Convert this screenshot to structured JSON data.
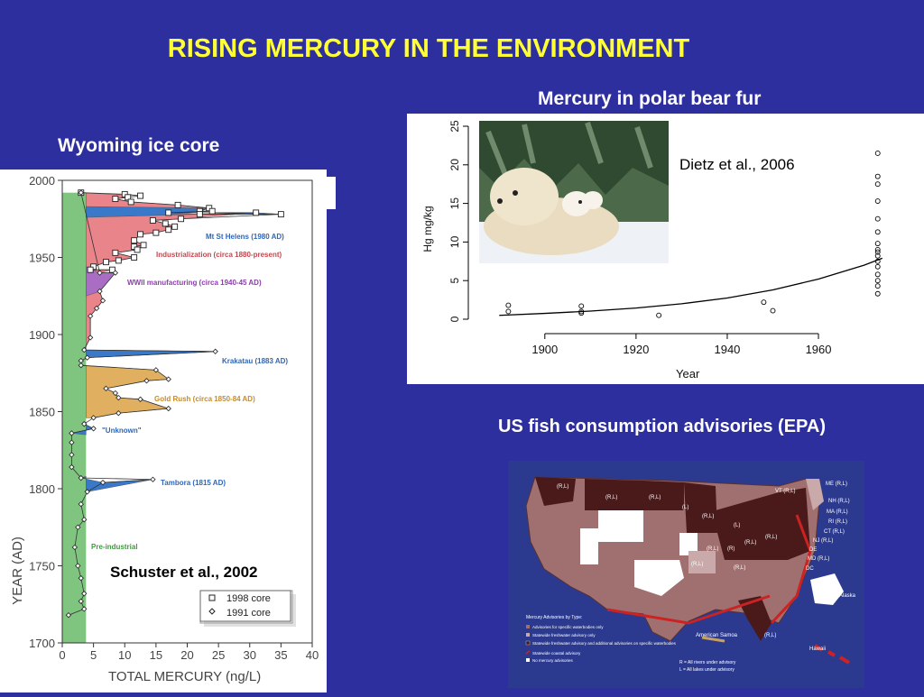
{
  "title": "RISING MERCURY IN THE ENVIRONMENT",
  "ice_core": {
    "heading": "Wyoming ice core",
    "citation": "Schuster et al., 2002",
    "legend": [
      "1998 core",
      "1991 core"
    ],
    "colors": {
      "preindustrial": "#7fc47f",
      "industrial": "#e8848a",
      "volcanic": "#3a79c9",
      "ww2": "#a96dc4",
      "goldrush": "#e0b060",
      "unknown": "#3a79c9"
    }
  },
  "polar_bear": {
    "heading": "Mercury in polar bear fur",
    "citation": "Dietz et al., 2006"
  },
  "fish": {
    "heading": "US fish consumption advisories (EPA)",
    "map_labels": {
      "rl_multi": [
        "(R,L)",
        "(R,L)",
        "(R,L)",
        "(R,L)",
        "(R,L)",
        "(R,L)",
        "(R,L)",
        "(R,L)",
        "(R,L)",
        "(R,L)"
      ],
      "l_only": [
        "(L)",
        "(L)"
      ],
      "r_only": "(R)",
      "ne_states": [
        "VT (R,L)",
        "ME (R,L)",
        "NH (R,L)",
        "MA (R,L)",
        "RI (R,L)",
        "CT (R,L)",
        "NJ (R,L)",
        "DE",
        "MD (R,L)",
        "DC"
      ],
      "alaska": "Alaska",
      "hawaii": "Hawaii",
      "samoa": "American Samoa"
    },
    "legend_title": "Mercury Advisories by Type:",
    "legend_items": [
      "Advisories for specific waterbodies only",
      "Statewide freshwater advisory only",
      "Statewide freshwater advisory and additional advisories on specific waterbodies",
      "Statewide coastal advisory",
      "No mercury advisories"
    ],
    "legend_colors": [
      "#a07070",
      "#c9a9a9",
      "#4a1a1a",
      "#cc2222",
      "#ffffff"
    ],
    "notes": [
      "R = All rivers under advisory",
      "L = All lakes under advisory"
    ]
  },
  "chart_data": [
    {
      "type": "area",
      "title": "",
      "xlabel": "TOTAL MERCURY (ng/L)",
      "ylabel": "YEAR (AD)",
      "xlim": [
        0,
        40
      ],
      "ylim": [
        1700,
        2000
      ],
      "x_ticks": [
        0,
        5,
        10,
        15,
        20,
        25,
        30,
        35,
        40
      ],
      "y_ticks": [
        1700,
        1750,
        1800,
        1850,
        1900,
        1950,
        2000
      ],
      "series": [
        {
          "name": "1998 core",
          "marker": "square",
          "points": [
            [
              3,
              1992
            ],
            [
              12.5,
              1990
            ],
            [
              10,
              1991
            ],
            [
              10.5,
              1989
            ],
            [
              8.5,
              1988
            ],
            [
              11,
              1986
            ],
            [
              18.5,
              1984
            ],
            [
              23.5,
              1982
            ],
            [
              22,
              1980
            ],
            [
              24,
              1980
            ],
            [
              17,
              1979
            ],
            [
              22,
              1978
            ],
            [
              35,
              1978
            ],
            [
              31,
              1979
            ],
            [
              19,
              1975
            ],
            [
              14.5,
              1974
            ],
            [
              16.5,
              1972
            ],
            [
              18,
              1970
            ],
            [
              17,
              1968
            ],
            [
              15,
              1966
            ],
            [
              12.5,
              1965
            ],
            [
              11.5,
              1961
            ],
            [
              13,
              1958
            ],
            [
              11.5,
              1957
            ],
            [
              12,
              1955
            ],
            [
              8.5,
              1953
            ],
            [
              11.5,
              1950
            ],
            [
              9,
              1948
            ],
            [
              7,
              1947
            ],
            [
              5,
              1944
            ],
            [
              4.5,
              1942
            ],
            [
              8,
              1942
            ]
          ]
        },
        {
          "name": "1991 core",
          "marker": "diamond",
          "points": [
            [
              3,
              1992
            ],
            [
              6,
              1940
            ],
            [
              8.5,
              1940
            ],
            [
              6,
              1928
            ],
            [
              6.5,
              1922
            ],
            [
              5.5,
              1917
            ],
            [
              4.5,
              1912
            ],
            [
              4.5,
              1898
            ],
            [
              3.5,
              1890
            ],
            [
              24.5,
              1889
            ],
            [
              4,
              1885
            ],
            [
              3,
              1883
            ],
            [
              3,
              1880
            ],
            [
              15,
              1877
            ],
            [
              17,
              1871
            ],
            [
              13.5,
              1870
            ],
            [
              7,
              1865
            ],
            [
              8.5,
              1862
            ],
            [
              9,
              1859
            ],
            [
              12.5,
              1858
            ],
            [
              17,
              1852
            ],
            [
              9,
              1849
            ],
            [
              5,
              1846
            ],
            [
              3.5,
              1842
            ],
            [
              5,
              1839
            ],
            [
              1.5,
              1836
            ],
            [
              1.5,
              1830
            ],
            [
              1.5,
              1822
            ],
            [
              1.5,
              1814
            ],
            [
              3,
              1807
            ],
            [
              6.5,
              1804
            ],
            [
              14.5,
              1806
            ],
            [
              4,
              1798
            ],
            [
              3,
              1790
            ],
            [
              3.5,
              1780
            ],
            [
              2.5,
              1775
            ],
            [
              2,
              1762
            ],
            [
              2.5,
              1750
            ],
            [
              3,
              1742
            ],
            [
              3.5,
              1732
            ],
            [
              3,
              1727
            ],
            [
              3.5,
              1722
            ],
            [
              1,
              1718
            ]
          ]
        }
      ],
      "annotations": [
        "Mt St Helens (1980 AD)",
        "Industrialization (circa 1880-present)",
        "WWII manufacturing (circa 1940-45 AD)",
        "Krakatau (1883 AD)",
        "Gold Rush (circa 1850-84 AD)",
        "\"Unknown\"",
        "Tambora (1815 AD)",
        "Pre-industrial"
      ]
    },
    {
      "type": "scatter",
      "title": "",
      "xlabel": "Year",
      "ylabel": "Hg mg/kg",
      "xlim": [
        1885,
        1978
      ],
      "ylim": [
        0,
        25
      ],
      "x_ticks": [
        1900,
        1920,
        1940,
        1960
      ],
      "y_ticks": [
        0,
        5,
        10,
        15,
        20,
        25
      ],
      "series": [
        {
          "name": "",
          "points": [
            [
              1892,
              1.8
            ],
            [
              1892,
              1.0
            ],
            [
              1908,
              1.7
            ],
            [
              1908,
              1.0
            ],
            [
              1908,
              0.8
            ],
            [
              1925,
              0.5
            ],
            [
              1948,
              2.2
            ],
            [
              1950,
              1.1
            ],
            [
              1973,
              21.5
            ],
            [
              1973,
              18.5
            ],
            [
              1973,
              17.5
            ],
            [
              1973,
              15.3
            ],
            [
              1973,
              13.0
            ],
            [
              1973,
              11.3
            ],
            [
              1973,
              9.8
            ],
            [
              1973,
              9.0
            ],
            [
              1973,
              8.7
            ],
            [
              1973,
              8.2
            ],
            [
              1973,
              7.5
            ],
            [
              1973,
              6.8
            ],
            [
              1973,
              5.8
            ],
            [
              1973,
              5.0
            ],
            [
              1973,
              4.3
            ],
            [
              1973,
              3.3
            ]
          ]
        },
        {
          "name": "",
          "style": "line",
          "points": [
            [
              1890,
              0.5
            ],
            [
              1900,
              0.75
            ],
            [
              1910,
              1.05
            ],
            [
              1920,
              1.45
            ],
            [
              1930,
              2.0
            ],
            [
              1940,
              2.75
            ],
            [
              1950,
              3.8
            ],
            [
              1960,
              5.2
            ],
            [
              1970,
              7.0
            ],
            [
              1974,
              7.9
            ]
          ]
        }
      ]
    }
  ]
}
